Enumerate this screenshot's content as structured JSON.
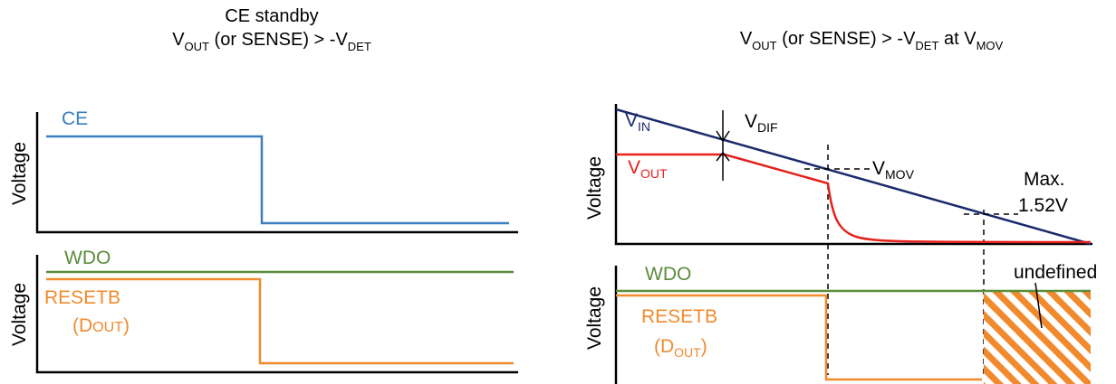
{
  "colors": {
    "ce": "#3b7fbf",
    "wdo": "#5b8c3a",
    "reset": "#f08a2c",
    "vin": "#1a2a6c",
    "vout": "#e3201b",
    "axis": "#000000"
  },
  "left": {
    "title_line1": "CE standby",
    "title_line2": {
      "v": "V",
      "out": "OUT",
      "mid": " (or SENSE) > -V",
      "det": "DET"
    },
    "top_panel": {
      "ylabel": "Voltage",
      "ce_label": "CE"
    },
    "bottom_panel": {
      "ylabel": "Voltage",
      "wdo_label": "WDO",
      "reset_label": "RESETB",
      "dout_open": "(D",
      "dout_sub": "OUT",
      "dout_close": ")"
    }
  },
  "right": {
    "title": {
      "v1": "V",
      "out": "OUT",
      "mid": " (or SENSE) > -V",
      "det": "DET",
      "at": " at V",
      "mov": "MOV"
    },
    "top_panel": {
      "ylabel": "Voltage",
      "vin": {
        "v": "V",
        "sub": "IN"
      },
      "vout": {
        "v": "V",
        "sub": "OUT"
      },
      "vdif": {
        "v": "V",
        "sub": "DIF"
      },
      "vmov": {
        "v": "V",
        "sub": "MOV"
      },
      "max_line1": "Max.",
      "max_line2": "1.52V"
    },
    "bottom_panel": {
      "ylabel": "Voltage",
      "wdo_label": "WDO",
      "reset_label": "RESETB",
      "dout_open": "(D",
      "dout_sub": "OUT",
      "dout_close": ")",
      "undefined_label": "undefined"
    }
  }
}
